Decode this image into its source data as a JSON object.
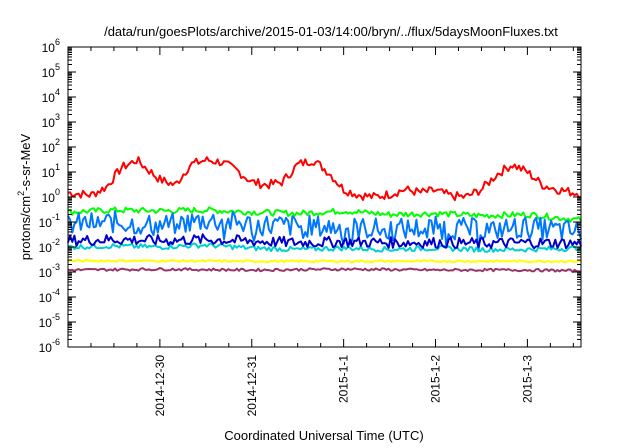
{
  "chart_data": {
    "type": "line",
    "title": "/data/run/goesPlots/archive/2015-01-03/14:00/bryn/../flux/5daysMoonFluxes.txt",
    "xlabel": "Coordinated Universal Time (UTC)",
    "ylabel": {
      "prefix": "protons/cm",
      "sup": "2",
      "suffix": "-s-sr-MeV"
    },
    "y_scale": "log",
    "ylim": [
      1e-06,
      1000000.0
    ],
    "y_ticks": [
      {
        "base": "10",
        "exp": "-6",
        "value": 1e-06
      },
      {
        "base": "10",
        "exp": "-5",
        "value": 1e-05
      },
      {
        "base": "10",
        "exp": "-4",
        "value": 0.0001
      },
      {
        "base": "10",
        "exp": "-3",
        "value": 0.001
      },
      {
        "base": "10",
        "exp": "-2",
        "value": 0.01
      },
      {
        "base": "10",
        "exp": "-1",
        "value": 0.1
      },
      {
        "base": "10",
        "exp": "0",
        "value": 1
      },
      {
        "base": "10",
        "exp": "1",
        "value": 10
      },
      {
        "base": "10",
        "exp": "2",
        "value": 100
      },
      {
        "base": "10",
        "exp": "3",
        "value": 1000
      },
      {
        "base": "10",
        "exp": "4",
        "value": 10000
      },
      {
        "base": "10",
        "exp": "5",
        "value": 100000
      },
      {
        "base": "10",
        "exp": "6",
        "value": 1000000
      }
    ],
    "xlim": [
      "2014-12-29T00:00",
      "2015-01-03T14:00"
    ],
    "x_ticks": [
      {
        "label": "2014-12-30",
        "value": "2014-12-30T00:00"
      },
      {
        "label": "2014-12-31",
        "value": "2014-12-31T00:00"
      },
      {
        "label": "2015-1-1",
        "value": "2015-01-01T00:00"
      },
      {
        "label": "2015-1-2",
        "value": "2015-01-02T00:00"
      },
      {
        "label": "2015-1-3",
        "value": "2015-01-03T00:00"
      }
    ],
    "grid": false,
    "legend": "none",
    "series": [
      {
        "color": "#ff0000",
        "x": [
          "2014-12-29T00:00",
          "2014-12-29T06:00",
          "2014-12-29T10:00",
          "2014-12-29T14:00",
          "2014-12-29T18:00",
          "2014-12-29T21:00",
          "2014-12-30T00:00",
          "2014-12-30T04:00",
          "2014-12-30T08:00",
          "2014-12-30T12:00",
          "2014-12-30T16:00",
          "2014-12-30T20:00",
          "2014-12-31T00:00",
          "2014-12-31T04:00",
          "2014-12-31T08:00",
          "2014-12-31T12:00",
          "2014-12-31T16:00",
          "2014-12-31T20:00",
          "2015-01-01T00:00",
          "2015-01-01T04:00",
          "2015-01-01T08:00",
          "2015-01-01T12:00",
          "2015-01-01T16:00",
          "2015-01-01T20:00",
          "2015-01-02T00:00",
          "2015-01-02T04:00",
          "2015-01-02T08:00",
          "2015-01-02T12:00",
          "2015-01-02T16:00",
          "2015-01-02T20:00",
          "2015-01-03T00:00",
          "2015-01-03T04:00",
          "2015-01-03T08:00",
          "2015-01-03T12:00",
          "2015-01-03T14:00"
        ],
        "y": [
          1.5,
          1.2,
          2.5,
          15,
          30,
          12,
          5,
          3,
          20,
          30,
          25,
          12,
          4,
          3,
          4,
          20,
          30,
          10,
          2,
          1.2,
          1.0,
          1.3,
          2,
          1.5,
          1.8,
          1.1,
          1.0,
          2,
          8,
          20,
          10,
          3,
          2,
          1.5,
          1.4
        ]
      },
      {
        "color": "#00ff00",
        "x": [
          "2014-12-29T00:00",
          "2014-12-29T12:00",
          "2014-12-30T00:00",
          "2014-12-30T12:00",
          "2014-12-31T00:00",
          "2014-12-31T12:00",
          "2015-01-01T00:00",
          "2015-01-01T12:00",
          "2015-01-02T00:00",
          "2015-01-02T12:00",
          "2015-01-03T00:00",
          "2015-01-03T14:00"
        ],
        "y": [
          0.25,
          0.3,
          0.28,
          0.3,
          0.25,
          0.22,
          0.28,
          0.2,
          0.22,
          0.18,
          0.2,
          0.12
        ]
      },
      {
        "color": "#0077ff",
        "x": [
          "2014-12-29T00:00",
          "2014-12-29T12:00",
          "2014-12-30T00:00",
          "2014-12-30T12:00",
          "2014-12-31T00:00",
          "2014-12-31T12:00",
          "2015-01-01T00:00",
          "2015-01-01T12:00",
          "2015-01-02T00:00",
          "2015-01-02T12:00",
          "2015-01-03T00:00",
          "2015-01-03T14:00"
        ],
        "y": [
          0.08,
          0.1,
          0.07,
          0.12,
          0.08,
          0.07,
          0.06,
          0.05,
          0.06,
          0.05,
          0.06,
          0.04
        ]
      },
      {
        "color": "#00cfcf",
        "x": [
          "2014-12-29T00:00",
          "2014-12-29T12:00",
          "2014-12-30T00:00",
          "2014-12-30T12:00",
          "2014-12-31T00:00",
          "2014-12-31T12:00",
          "2015-01-01T00:00",
          "2015-01-01T12:00",
          "2015-01-02T00:00",
          "2015-01-02T12:00",
          "2015-01-03T00:00",
          "2015-01-03T14:00"
        ],
        "y": [
          0.01,
          0.011,
          0.01,
          0.012,
          0.009,
          0.008,
          0.009,
          0.008,
          0.009,
          0.008,
          0.008,
          0.009
        ]
      },
      {
        "color": "#0000cc",
        "x": [
          "2014-12-29T00:00",
          "2014-12-29T12:00",
          "2014-12-30T00:00",
          "2014-12-30T12:00",
          "2014-12-31T00:00",
          "2014-12-31T12:00",
          "2015-01-01T00:00",
          "2015-01-01T12:00",
          "2015-01-02T00:00",
          "2015-01-02T12:00",
          "2015-01-03T00:00",
          "2015-01-03T14:00"
        ],
        "y": [
          0.018,
          0.02,
          0.018,
          0.02,
          0.017,
          0.015,
          0.016,
          0.015,
          0.015,
          0.014,
          0.015,
          0.014
        ]
      },
      {
        "color": "#ffff00",
        "x": [
          "2014-12-29T00:00",
          "2014-12-30T00:00",
          "2014-12-31T00:00",
          "2015-01-01T00:00",
          "2015-01-02T00:00",
          "2015-01-03T00:00",
          "2015-01-03T14:00"
        ],
        "y": [
          0.0028,
          0.0028,
          0.0027,
          0.0027,
          0.0027,
          0.0027,
          0.0027
        ]
      },
      {
        "color": "#993366",
        "x": [
          "2014-12-29T00:00",
          "2014-12-30T00:00",
          "2014-12-31T00:00",
          "2015-01-01T00:00",
          "2015-01-02T00:00",
          "2015-01-03T00:00",
          "2015-01-03T14:00"
        ],
        "y": [
          0.0012,
          0.0013,
          0.0012,
          0.0013,
          0.0012,
          0.0012,
          0.0011
        ]
      }
    ]
  }
}
